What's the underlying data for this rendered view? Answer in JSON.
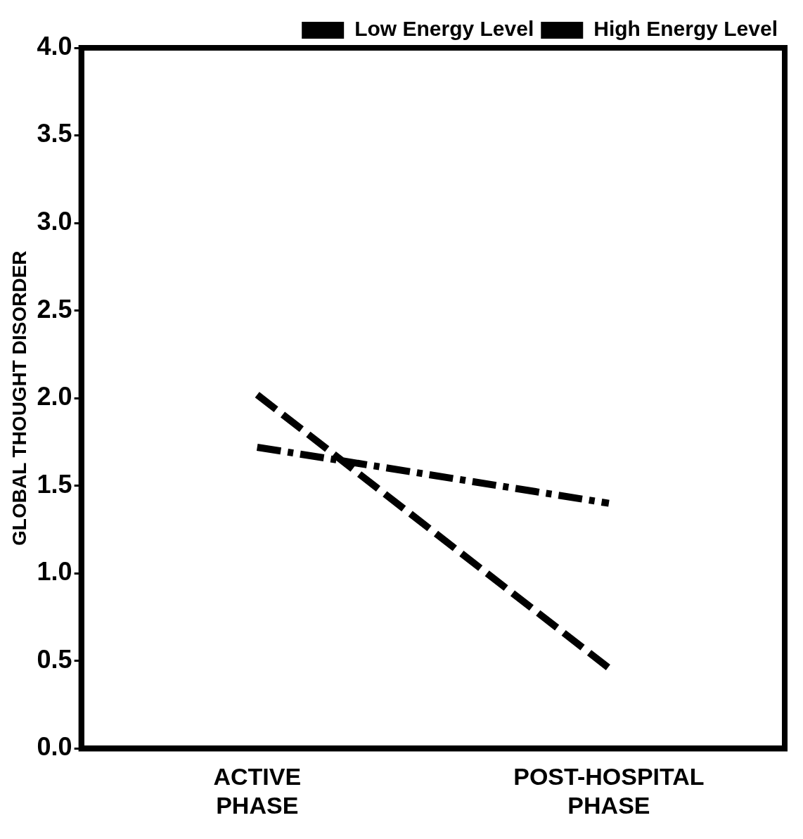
{
  "chart_data": {
    "type": "line",
    "ylabel": "GLOBAL THOUGHT DISORDER",
    "categories": [
      "ACTIVE PHASE",
      "POST-HOSPITAL PHASE"
    ],
    "series": [
      {
        "name": "Low Energy Level",
        "color": "#000000",
        "values": [
          2.02,
          0.46
        ],
        "line_style": "dashed"
      },
      {
        "name": "High Energy Level",
        "color": "#000000",
        "values": [
          1.72,
          1.4
        ],
        "line_style": "dashdot"
      }
    ],
    "ylim": [
      0,
      4
    ],
    "yticks": [
      {
        "value": 0,
        "label": "0.0"
      },
      {
        "value": 0.5,
        "label": "0.5"
      },
      {
        "value": 1,
        "label": "1.0"
      },
      {
        "value": 1.5,
        "label": "1.5"
      },
      {
        "value": 2,
        "label": "2.0"
      },
      {
        "value": 2.5,
        "label": "2.5"
      },
      {
        "value": 3,
        "label": "3.0"
      },
      {
        "value": 3.5,
        "label": "3.5"
      },
      {
        "value": 4,
        "label": "4.0"
      }
    ],
    "grid": false,
    "legend": "top right",
    "marker": "none"
  }
}
